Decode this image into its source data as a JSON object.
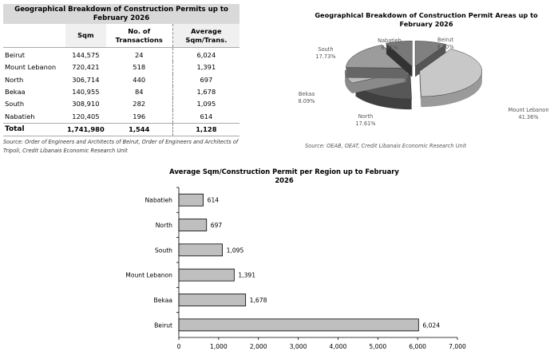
{
  "table": {
    "title": "Geographical Breakdown of Construction Permits up to February 2026",
    "headers": [
      "",
      "Sqm",
      "No. of Transactions",
      "Average Sqm/Trans."
    ],
    "rows": [
      [
        "Beirut",
        "144,575",
        "24",
        "6,024"
      ],
      [
        "Mount Lebanon",
        "720,421",
        "518",
        "1,391"
      ],
      [
        "North",
        "306,714",
        "440",
        "697"
      ],
      [
        "Bekaa",
        "140,955",
        "84",
        "1,678"
      ],
      [
        "South",
        "308,910",
        "282",
        "1,095"
      ],
      [
        "Nabatieh",
        "120,405",
        "196",
        "614"
      ]
    ],
    "total": [
      "Total",
      "1,741,980",
      "1,544",
      "1,128"
    ],
    "source": "Source: Order of Engineers and Architects of Beirut, Order of Engineers and Architects of Tripoli, Credit Libanais Economic Research Unit"
  },
  "chart_data": [
    {
      "type": "pie",
      "title": "Geographical Breakdown of Construction Permit Areas up to February 2026",
      "slices": [
        {
          "label": "Beirut",
          "pct": "8.30%",
          "value": 8.3,
          "top": "#808080",
          "side": "#555555"
        },
        {
          "label": "Mount Lebanon",
          "pct": "41.36%",
          "value": 41.36,
          "top": "#c8c8c8",
          "side": "#9a9a9a"
        },
        {
          "label": "North",
          "pct": "17.61%",
          "value": 17.61,
          "top": "#575757",
          "side": "#404040"
        },
        {
          "label": "Bekaa",
          "pct": "8.09%",
          "value": 8.09,
          "top": "#bdbdbd",
          "side": "#8a8a8a"
        },
        {
          "label": "South",
          "pct": "17.73%",
          "value": 17.73,
          "top": "#9c9c9c",
          "side": "#666666"
        },
        {
          "label": "Nabatieh",
          "pct": "6.91%",
          "value": 6.91,
          "top": "#787878",
          "side": "#333333"
        }
      ],
      "source": "Source: OEAB, OEAT, Credit Libanais Economic Research Unit"
    },
    {
      "type": "bar",
      "orientation": "horizontal",
      "title": "Average Sqm/Construction Permit per Region up to February 2026",
      "categories": [
        "Nabatieh",
        "North",
        "South",
        "Mount Lebanon",
        "Bekaa",
        "Beirut"
      ],
      "values": [
        614,
        697,
        1095,
        1391,
        1678,
        6024
      ],
      "value_labels": [
        "614",
        "697",
        "1,095",
        "1,391",
        "1,678",
        "6,024"
      ],
      "xlim": [
        0,
        7000
      ],
      "xticks": [
        "0",
        "1,000",
        "2,000",
        "3,000",
        "4,000",
        "5,000",
        "6,000",
        "7,000"
      ],
      "bar_color": "#bfbfbf"
    }
  ]
}
